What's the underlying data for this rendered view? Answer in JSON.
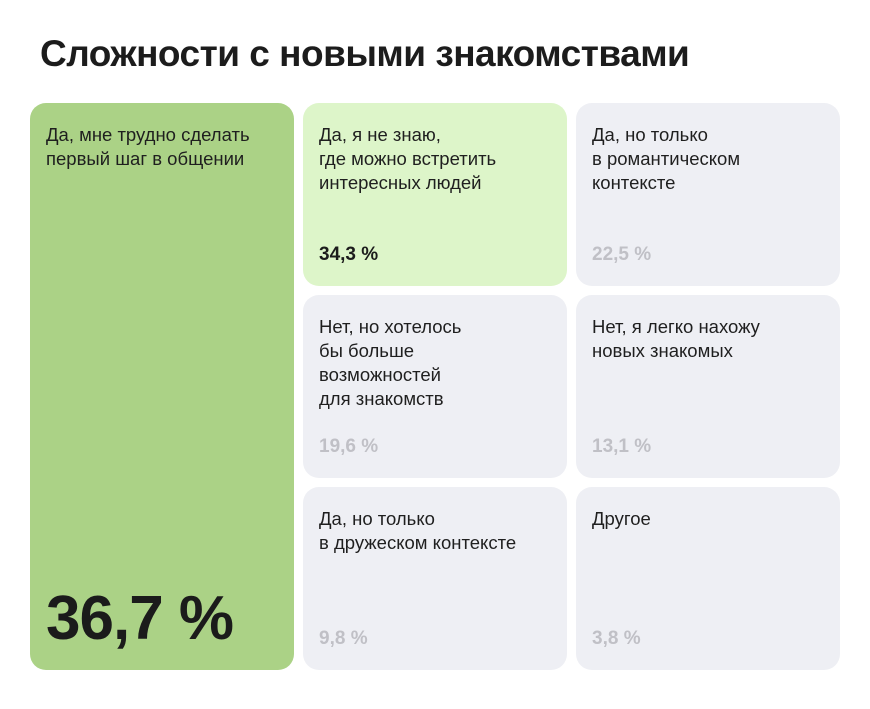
{
  "title": "Сложности с новыми знакомствами",
  "colors": {
    "top": "#abd286",
    "second": "#ddf5c9",
    "rest": "#eeeff4"
  },
  "chart_data": {
    "type": "treemap",
    "title": "Сложности с новыми знакомствами",
    "categories": [
      "Да, мне трудно сделать первый шаг в общении",
      "Да, я не знаю, где можно встретить интересных людей",
      "Да, но только в романтическом контексте",
      "Нет, но хотелось бы больше возможностей для знакомств",
      "Нет, я легко нахожу новых знакомых",
      "Да, но только в дружеском контексте",
      "Другое"
    ],
    "values": [
      36.7,
      34.3,
      22.5,
      19.6,
      13.1,
      9.8,
      3.8
    ],
    "items": [
      {
        "label": "Да, мне трудно сделать\nпервый шаг в общении",
        "value": 36.7,
        "value_text": "36,7 %"
      },
      {
        "label": "Да, я не знаю,\nгде можно встретить\nинтересных людей",
        "value": 34.3,
        "value_text": "34,3 %"
      },
      {
        "label": "Да, но только\nв романтическом\nконтексте",
        "value": 22.5,
        "value_text": "22,5 %"
      },
      {
        "label": "Нет, но хотелось\nбы больше\nвозможностей\nдля знакомств",
        "value": 19.6,
        "value_text": "19,6 %"
      },
      {
        "label": "Нет, я легко нахожу\nновых знакомых",
        "value": 13.1,
        "value_text": "13,1 %"
      },
      {
        "label": "Да, но только\nв дружеском контексте",
        "value": 9.8,
        "value_text": "9,8 %"
      },
      {
        "label": "Другое",
        "value": 3.8,
        "value_text": "3,8 %"
      }
    ]
  }
}
